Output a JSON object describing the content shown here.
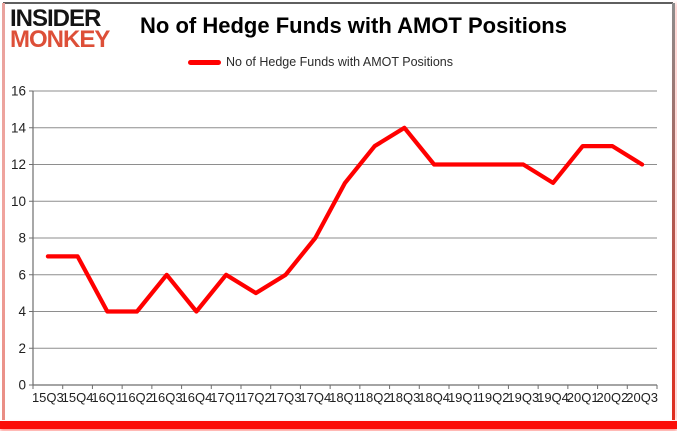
{
  "logo": {
    "line1": "INSIDER",
    "line2": "MONKEY",
    "line1_color": "#141414",
    "line2_color": "#dd4f38"
  },
  "header": {
    "title": "No of Hedge Funds with AMOT Positions"
  },
  "legend": {
    "label": "No of Hedge Funds with AMOT Positions",
    "line_color": "#ff0000"
  },
  "chart_data": {
    "type": "line",
    "title": "No of Hedge Funds with AMOT Positions",
    "series": [
      {
        "name": "No of Hedge Funds with AMOT Positions",
        "color": "#ff0000",
        "values": [
          7,
          7,
          4,
          4,
          6,
          4,
          6,
          5,
          6,
          8,
          11,
          13,
          14,
          12,
          12,
          12,
          12,
          11,
          13,
          13,
          12
        ]
      }
    ],
    "categories": [
      "15Q3",
      "15Q4",
      "16Q1",
      "16Q2",
      "16Q3",
      "16Q4",
      "17Q1",
      "17Q2",
      "17Q3",
      "17Q4",
      "18Q1",
      "18Q2",
      "18Q3",
      "18Q4",
      "19Q1",
      "19Q2",
      "19Q3",
      "19Q4",
      "20Q1",
      "20Q2",
      "20Q3"
    ],
    "ylim": [
      0,
      16
    ],
    "ytick_step": 2,
    "ytick_labels": [
      "0",
      "2",
      "4",
      "6",
      "8",
      "10",
      "12",
      "14",
      "16"
    ],
    "grid": true,
    "legend_position": "top",
    "grid_color": "#8e8e8e",
    "axis_color": "#6e6e6e",
    "tick_label_color": "#1f1f1f"
  }
}
